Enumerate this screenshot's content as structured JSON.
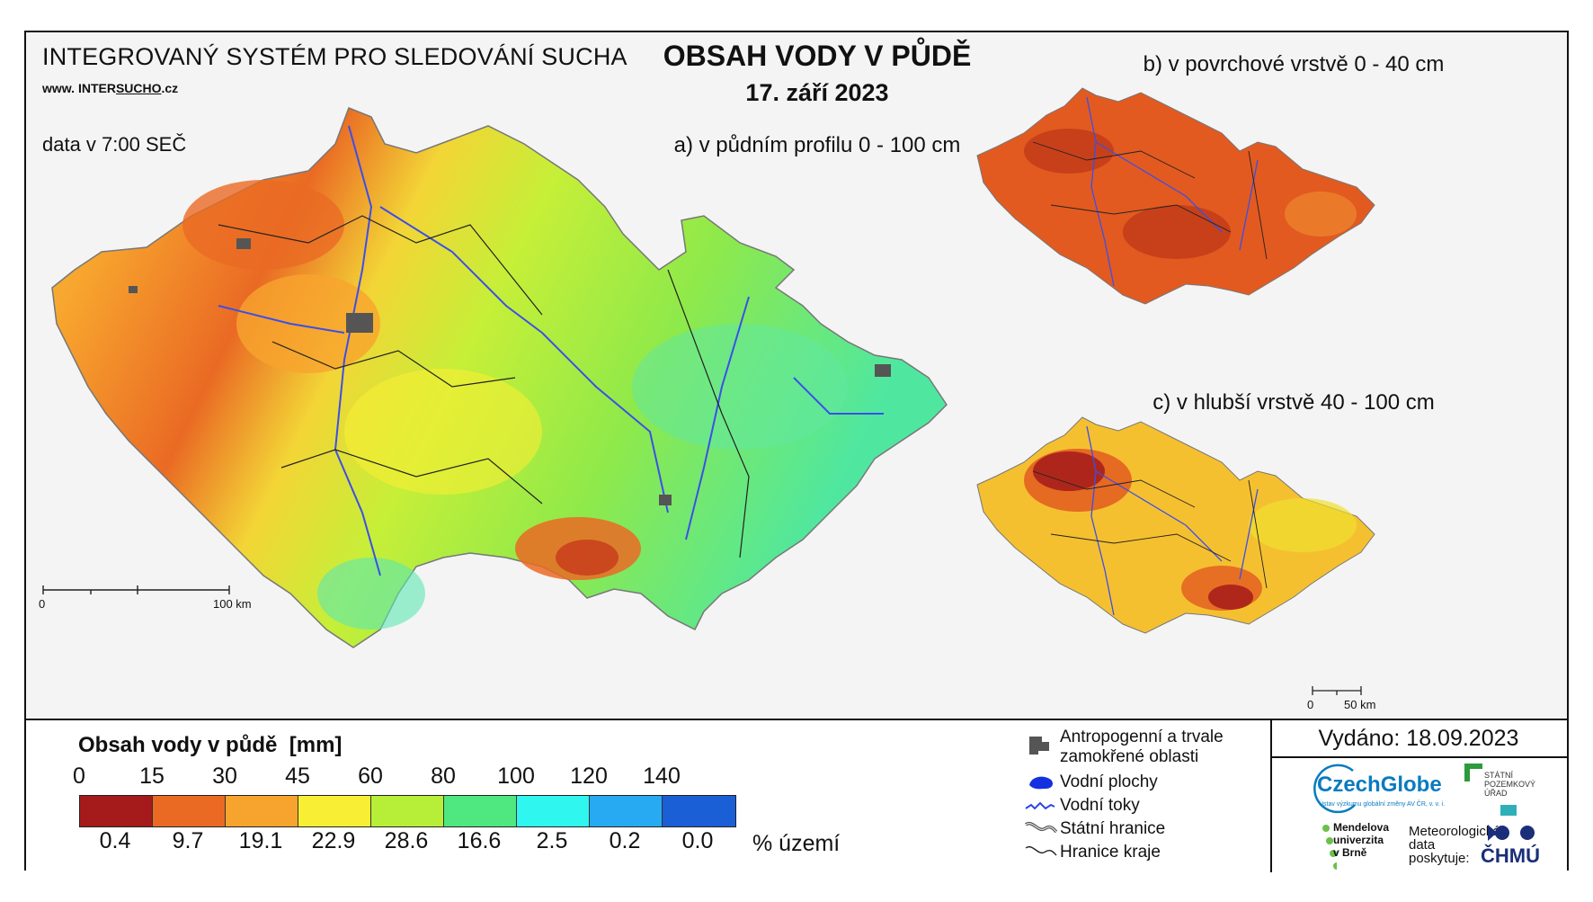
{
  "header": {
    "system_title": "INTEGROVANÝ SYSTÉM PRO SLEDOVÁNÍ SUCHA",
    "website_prefix": "www.",
    "website_main": "INTER",
    "website_brand": "SUCHO",
    "website_tld": ".cz",
    "data_time": "data v 7:00 SEČ",
    "main_title": "OBSAH VODY V PŮDĚ",
    "date": "17. září 2023"
  },
  "maps": {
    "a_label": "a) v půdním profilu 0 - 100 cm",
    "b_label": "b) v povrchové vrstvě 0 - 40 cm",
    "c_label": "c) v hlubší vrstvě 40 - 100 cm",
    "scale_main": {
      "start": "0",
      "end": "100 km"
    },
    "scale_small": {
      "start": "0",
      "end": "50 km"
    }
  },
  "legend": {
    "title": "Obsah vody v půdě",
    "unit": "[mm]",
    "thresholds": [
      "0",
      "15",
      "30",
      "45",
      "60",
      "80",
      "100",
      "120",
      "140"
    ],
    "class_colors": [
      "#a51a1a",
      "#ea6a24",
      "#f7a42e",
      "#f8ef34",
      "#b7ef38",
      "#4fe77f",
      "#2ff6ef",
      "#27aaf2",
      "#1a5fd6"
    ],
    "percentages": [
      "0.4",
      "9.7",
      "19.1",
      "22.9",
      "28.6",
      "16.6",
      "2.5",
      "0.2",
      "0.0"
    ],
    "percent_unit": "% území"
  },
  "symbols": {
    "anthropogenic_1": "Antropogenní a trvale",
    "anthropogenic_2": "zamokřené oblasti",
    "water_bodies": "Vodní plochy",
    "rivers": "Vodní toky",
    "state_border": "Státní hranice",
    "region_border": "Hranice kraje"
  },
  "issued": "Vydáno: 18.09.2023",
  "logos": {
    "czechglobe": "CzechGlobe",
    "czechglobe_sub": "Ústav výzkumu globální změny AV ČR, v. v. i.",
    "spu_1": "STÁTNÍ",
    "spu_2": "POZEMKOVÝ",
    "spu_3": "ÚŘAD",
    "mendel_1": "Mendelova",
    "mendel_2": "univerzita",
    "mendel_3": "v Brně",
    "meteo_1": "Meteorologická",
    "meteo_2": "data",
    "meteo_3": "poskytuje:",
    "chmu": "ČHMÚ"
  }
}
